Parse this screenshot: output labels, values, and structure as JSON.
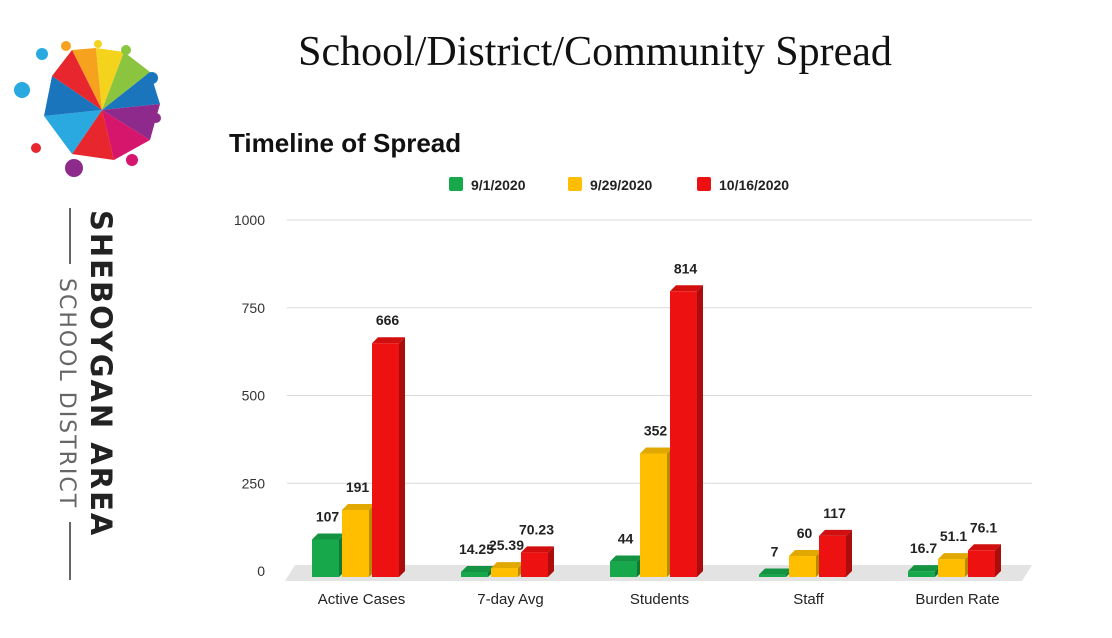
{
  "slide": {
    "title": "School/District/Community Spread"
  },
  "branding": {
    "district_name": "SHEBOYGAN AREA",
    "district_sub": "SCHOOL DISTRICT",
    "logo_colors": [
      "#e8262d",
      "#f6a21e",
      "#f4d31c",
      "#8bc53f",
      "#29a9e0",
      "#1b75bc",
      "#8e2a8c",
      "#d6156c"
    ]
  },
  "chart_data": {
    "type": "bar",
    "title": "Timeline of Spread",
    "categories": [
      "Active Cases",
      "7-day Avg",
      "Students",
      "Staff",
      "Burden Rate"
    ],
    "series": [
      {
        "name": "9/1/2020",
        "color": "#17a84b",
        "values": [
          107,
          14.25,
          44,
          7,
          16.7
        ],
        "labels": [
          "107",
          "14.25",
          "44",
          "7",
          "16.7"
        ]
      },
      {
        "name": "9/29/2020",
        "color": "#ffbf00",
        "values": [
          191,
          25.39,
          352,
          60,
          51.1
        ],
        "labels": [
          "191",
          "25.39",
          "352",
          "60",
          "51.1"
        ]
      },
      {
        "name": "10/16/2020",
        "color": "#ee1111",
        "values": [
          666,
          70.23,
          814,
          117,
          76.1
        ],
        "labels": [
          "666",
          "70.23",
          "814",
          "117",
          "76.1"
        ]
      }
    ],
    "ylim": [
      0,
      1000
    ],
    "yticks": [
      0,
      250,
      500,
      750,
      1000
    ],
    "grid": true,
    "legend": "top",
    "style": "3d"
  }
}
